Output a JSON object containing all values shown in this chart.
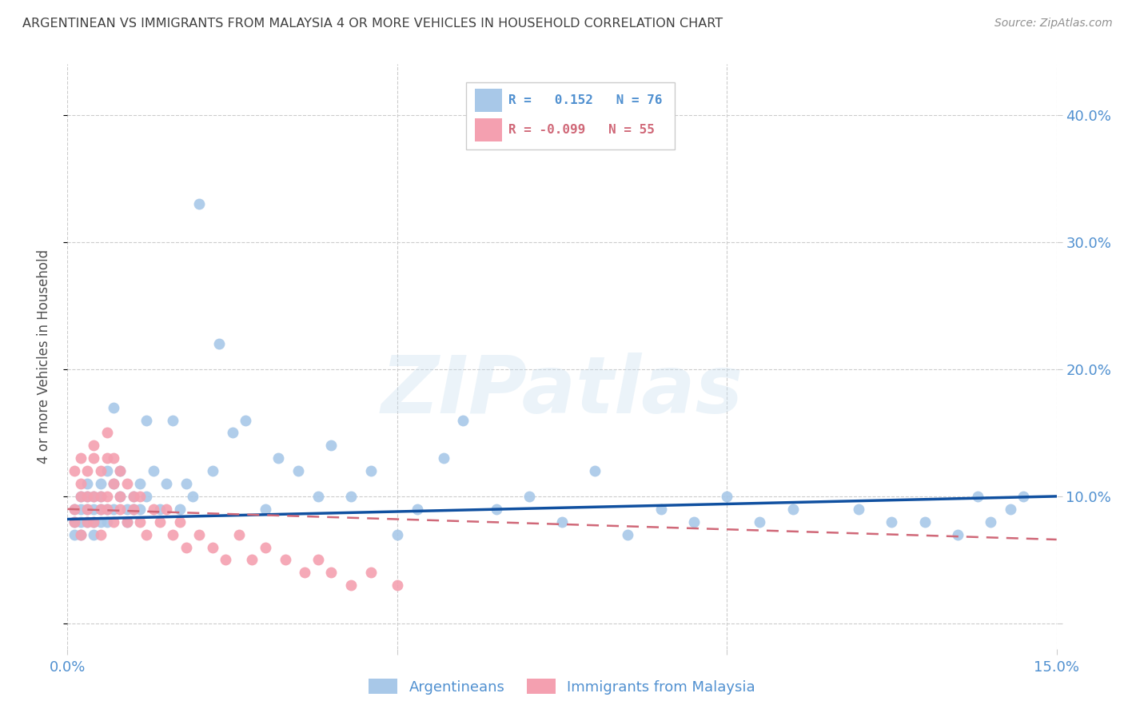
{
  "title": "ARGENTINEAN VS IMMIGRANTS FROM MALAYSIA 4 OR MORE VEHICLES IN HOUSEHOLD CORRELATION CHART",
  "source": "Source: ZipAtlas.com",
  "ylabel": "4 or more Vehicles in Household",
  "xlim": [
    0.0,
    0.15
  ],
  "ylim": [
    -0.02,
    0.44
  ],
  "legend_label1": "Argentineans",
  "legend_label2": "Immigrants from Malaysia",
  "R1": 0.152,
  "N1": 76,
  "R2": -0.099,
  "N2": 55,
  "color_blue": "#a8c8e8",
  "color_pink": "#f4a0b0",
  "line_blue": "#1050a0",
  "line_pink": "#d06878",
  "watermark_text": "ZIPatlas",
  "blue_scatter_x": [
    0.001,
    0.001,
    0.001,
    0.002,
    0.002,
    0.002,
    0.002,
    0.003,
    0.003,
    0.003,
    0.003,
    0.004,
    0.004,
    0.004,
    0.004,
    0.005,
    0.005,
    0.005,
    0.005,
    0.006,
    0.006,
    0.006,
    0.007,
    0.007,
    0.007,
    0.008,
    0.008,
    0.009,
    0.009,
    0.01,
    0.01,
    0.011,
    0.011,
    0.012,
    0.012,
    0.013,
    0.014,
    0.015,
    0.016,
    0.017,
    0.018,
    0.019,
    0.02,
    0.022,
    0.023,
    0.025,
    0.027,
    0.03,
    0.032,
    0.035,
    0.038,
    0.04,
    0.043,
    0.046,
    0.05,
    0.053,
    0.057,
    0.06,
    0.065,
    0.07,
    0.075,
    0.08,
    0.085,
    0.09,
    0.095,
    0.1,
    0.105,
    0.11,
    0.12,
    0.125,
    0.13,
    0.135,
    0.138,
    0.14,
    0.143,
    0.145
  ],
  "blue_scatter_y": [
    0.08,
    0.09,
    0.07,
    0.09,
    0.1,
    0.08,
    0.07,
    0.09,
    0.08,
    0.1,
    0.11,
    0.08,
    0.09,
    0.1,
    0.07,
    0.1,
    0.09,
    0.08,
    0.11,
    0.12,
    0.09,
    0.08,
    0.11,
    0.09,
    0.17,
    0.1,
    0.12,
    0.09,
    0.08,
    0.1,
    0.09,
    0.11,
    0.09,
    0.16,
    0.1,
    0.12,
    0.09,
    0.11,
    0.16,
    0.09,
    0.11,
    0.1,
    0.33,
    0.12,
    0.22,
    0.15,
    0.16,
    0.09,
    0.13,
    0.12,
    0.1,
    0.14,
    0.1,
    0.12,
    0.07,
    0.09,
    0.13,
    0.16,
    0.09,
    0.1,
    0.08,
    0.12,
    0.07,
    0.09,
    0.08,
    0.1,
    0.08,
    0.09,
    0.09,
    0.08,
    0.08,
    0.07,
    0.1,
    0.08,
    0.09,
    0.1
  ],
  "pink_scatter_x": [
    0.001,
    0.001,
    0.001,
    0.002,
    0.002,
    0.002,
    0.002,
    0.003,
    0.003,
    0.003,
    0.003,
    0.004,
    0.004,
    0.004,
    0.004,
    0.005,
    0.005,
    0.005,
    0.005,
    0.006,
    0.006,
    0.006,
    0.006,
    0.007,
    0.007,
    0.007,
    0.008,
    0.008,
    0.008,
    0.009,
    0.009,
    0.01,
    0.01,
    0.011,
    0.011,
    0.012,
    0.013,
    0.014,
    0.015,
    0.016,
    0.017,
    0.018,
    0.02,
    0.022,
    0.024,
    0.026,
    0.028,
    0.03,
    0.033,
    0.036,
    0.038,
    0.04,
    0.043,
    0.046,
    0.05
  ],
  "pink_scatter_y": [
    0.08,
    0.12,
    0.09,
    0.1,
    0.13,
    0.07,
    0.11,
    0.09,
    0.12,
    0.1,
    0.08,
    0.13,
    0.1,
    0.08,
    0.14,
    0.1,
    0.09,
    0.12,
    0.07,
    0.15,
    0.09,
    0.13,
    0.1,
    0.13,
    0.11,
    0.08,
    0.1,
    0.09,
    0.12,
    0.08,
    0.11,
    0.09,
    0.1,
    0.1,
    0.08,
    0.07,
    0.09,
    0.08,
    0.09,
    0.07,
    0.08,
    0.06,
    0.07,
    0.06,
    0.05,
    0.07,
    0.05,
    0.06,
    0.05,
    0.04,
    0.05,
    0.04,
    0.03,
    0.04,
    0.03
  ],
  "grid_color": "#cccccc",
  "title_color": "#404040",
  "axis_color": "#5090d0",
  "background_color": "#ffffff",
  "blue_line_start_x": 0.0,
  "blue_line_end_x": 0.15,
  "blue_line_start_y": 0.082,
  "blue_line_end_y": 0.1,
  "pink_line_start_x": 0.0,
  "pink_line_end_x": 0.15,
  "pink_line_start_y": 0.09,
  "pink_line_end_y": 0.066
}
